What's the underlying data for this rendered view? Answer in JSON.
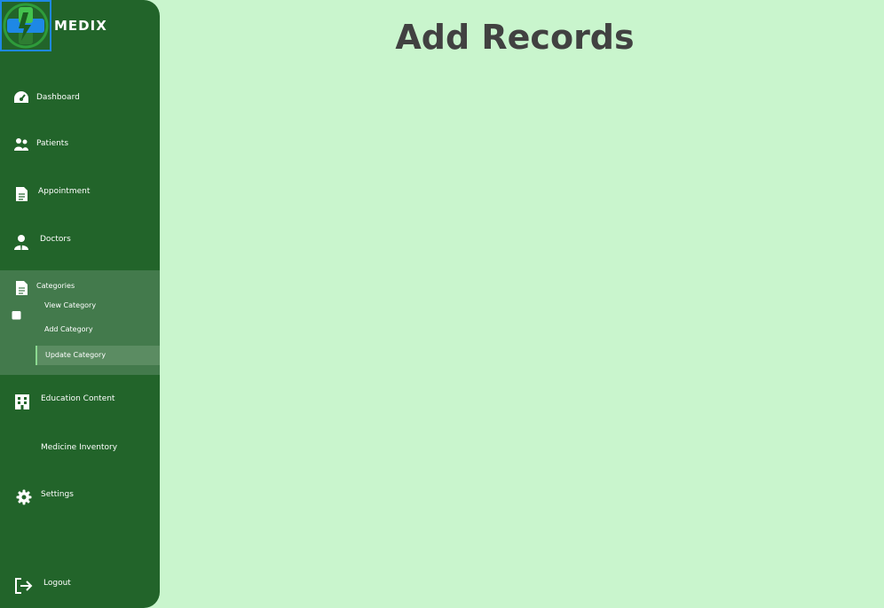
{
  "brand": {
    "name": "MEDIX"
  },
  "main": {
    "title": "Add Records"
  },
  "sidebar": {
    "items": [
      {
        "label": "Dashboard",
        "icon": "dashboard-gauge-icon"
      },
      {
        "label": "Patients",
        "icon": "users-icon"
      },
      {
        "label": "Appointment",
        "icon": "document-icon"
      },
      {
        "label": "Doctors",
        "icon": "doctor-icon"
      },
      {
        "label": "Categories",
        "icon": "document-icon"
      },
      {
        "label": "Education Content",
        "icon": "building-icon"
      },
      {
        "label": "Medicine Inventory",
        "icon": ""
      },
      {
        "label": "Settings",
        "icon": "gear-icon"
      },
      {
        "label": "Logout",
        "icon": "logout-icon"
      }
    ],
    "categories_sub": [
      {
        "label": "View Category"
      },
      {
        "label": "Add Category"
      },
      {
        "label": "Update Category",
        "active": true
      }
    ]
  },
  "colors": {
    "sidebar_bg": "#22642a",
    "content_bg": "#c9f5cd",
    "categories_bg": "#437a4c",
    "active_sub_bg": "#5b8c62",
    "title_text": "#414141"
  }
}
